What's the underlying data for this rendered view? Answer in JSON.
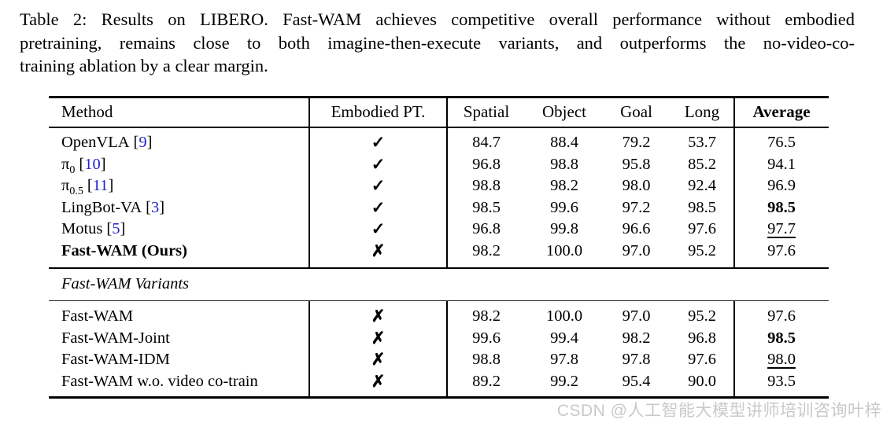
{
  "caption": {
    "lines": [
      "Table 2: Results on LIBERO. Fast-WAM achieves competitive overall performance without embodied",
      "pretraining, remains close to both imagine-then-execute variants, and outperforms the no-video-co-",
      "training ablation by a clear margin."
    ]
  },
  "table": {
    "headers": [
      "Method",
      "Embodied PT.",
      "Spatial",
      "Object",
      "Goal",
      "Long",
      "Average"
    ],
    "main_rows": [
      {
        "name": "OpenVLA",
        "sub": "",
        "cite_pre": "[",
        "cite_num": "9",
        "cite_post": "]",
        "pt": "✓",
        "spatial": "84.7",
        "object": "88.4",
        "goal": "79.2",
        "long": "53.7",
        "average": "76.5"
      },
      {
        "name": "π",
        "sub": "0",
        "cite_pre": "[",
        "cite_num": "10",
        "cite_post": "]",
        "pt": "✓",
        "spatial": "96.8",
        "object": "98.8",
        "goal": "95.8",
        "long": "85.2",
        "average": "94.1"
      },
      {
        "name": "π",
        "sub": "0.5",
        "cite_pre": "[",
        "cite_num": "11",
        "cite_post": "]",
        "pt": "✓",
        "spatial": "98.8",
        "object": "98.2",
        "goal": "98.0",
        "long": "92.4",
        "average": "96.9"
      },
      {
        "name": "LingBot-VA",
        "sub": "",
        "cite_pre": "[",
        "cite_num": "3",
        "cite_post": "]",
        "pt": "✓",
        "spatial": "98.5",
        "object": "99.6",
        "goal": "97.2",
        "long": "98.5",
        "average": "98.5"
      },
      {
        "name": "Motus",
        "sub": "",
        "cite_pre": "[",
        "cite_num": "5",
        "cite_post": "]",
        "pt": "✓",
        "spatial": "96.8",
        "object": "99.8",
        "goal": "96.6",
        "long": "97.6",
        "average": "97.7"
      },
      {
        "name": "Fast-WAM (Ours)",
        "sub": "",
        "cite_pre": "",
        "cite_num": "",
        "cite_post": "",
        "pt": "✗",
        "spatial": "98.2",
        "object": "100.0",
        "goal": "97.0",
        "long": "95.2",
        "average": "97.6"
      }
    ],
    "section_label": "Fast-WAM Variants",
    "variant_rows": [
      {
        "name": "Fast-WAM",
        "pt": "✗",
        "spatial": "98.2",
        "object": "100.0",
        "goal": "97.0",
        "long": "95.2",
        "average": "97.6"
      },
      {
        "name": "Fast-WAM-Joint",
        "pt": "✗",
        "spatial": "99.6",
        "object": "99.4",
        "goal": "98.2",
        "long": "96.8",
        "average": "98.5"
      },
      {
        "name": "Fast-WAM-IDM",
        "pt": "✗",
        "spatial": "98.8",
        "object": "97.8",
        "goal": "97.8",
        "long": "97.6",
        "average": "98.0"
      },
      {
        "name": "Fast-WAM w.o. video co-train",
        "pt": "✗",
        "spatial": "89.2",
        "object": "99.2",
        "goal": "95.4",
        "long": "90.0",
        "average": "93.5"
      }
    ],
    "marks": {
      "embodied_yes": "✓",
      "embodied_no": "✗"
    }
  },
  "watermark": "CSDN @人工智能大模型讲师培训咨询叶梓",
  "colors": {
    "text": "#000000",
    "citation_blue": "#2222d2",
    "rule_black": "#000000",
    "watermark_gray": "#c9c9c9"
  }
}
